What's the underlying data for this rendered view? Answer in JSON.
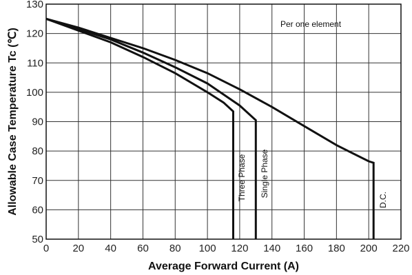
{
  "chart_data": {
    "type": "line",
    "title": "",
    "xlabel": "Average Forward Current (A)",
    "ylabel": "Allowable Case Temperature Tc (℃)",
    "xlim": [
      0,
      220
    ],
    "ylim": [
      50,
      130
    ],
    "x_ticks": [
      "0",
      "20",
      "40",
      "60",
      "80",
      "100",
      "120",
      "140",
      "160",
      "180",
      "200",
      "220"
    ],
    "y_ticks": [
      "50",
      "60",
      "70",
      "80",
      "90",
      "100",
      "110",
      "120",
      "130"
    ],
    "grid": true,
    "annotation": "Per one element",
    "series": [
      {
        "name": "Three Phase",
        "points": [
          [
            0,
            125
          ],
          [
            20,
            121
          ],
          [
            40,
            117
          ],
          [
            60,
            112
          ],
          [
            80,
            106.5
          ],
          [
            100,
            100
          ],
          [
            110,
            96.5
          ],
          [
            116,
            93.5
          ],
          [
            116,
            50
          ]
        ]
      },
      {
        "name": "Single Phase",
        "points": [
          [
            0,
            125
          ],
          [
            20,
            121.5
          ],
          [
            40,
            118
          ],
          [
            60,
            113.5
          ],
          [
            80,
            108.5
          ],
          [
            100,
            103
          ],
          [
            120,
            95.5
          ],
          [
            130,
            90.5
          ],
          [
            130,
            50
          ]
        ]
      },
      {
        "name": "D.C.",
        "points": [
          [
            0,
            125
          ],
          [
            20,
            122
          ],
          [
            40,
            118.5
          ],
          [
            60,
            115
          ],
          [
            80,
            111
          ],
          [
            100,
            106.5
          ],
          [
            120,
            101
          ],
          [
            140,
            95
          ],
          [
            160,
            88.5
          ],
          [
            180,
            82
          ],
          [
            200,
            76.5
          ],
          [
            203,
            76
          ],
          [
            203,
            50
          ]
        ]
      }
    ]
  }
}
